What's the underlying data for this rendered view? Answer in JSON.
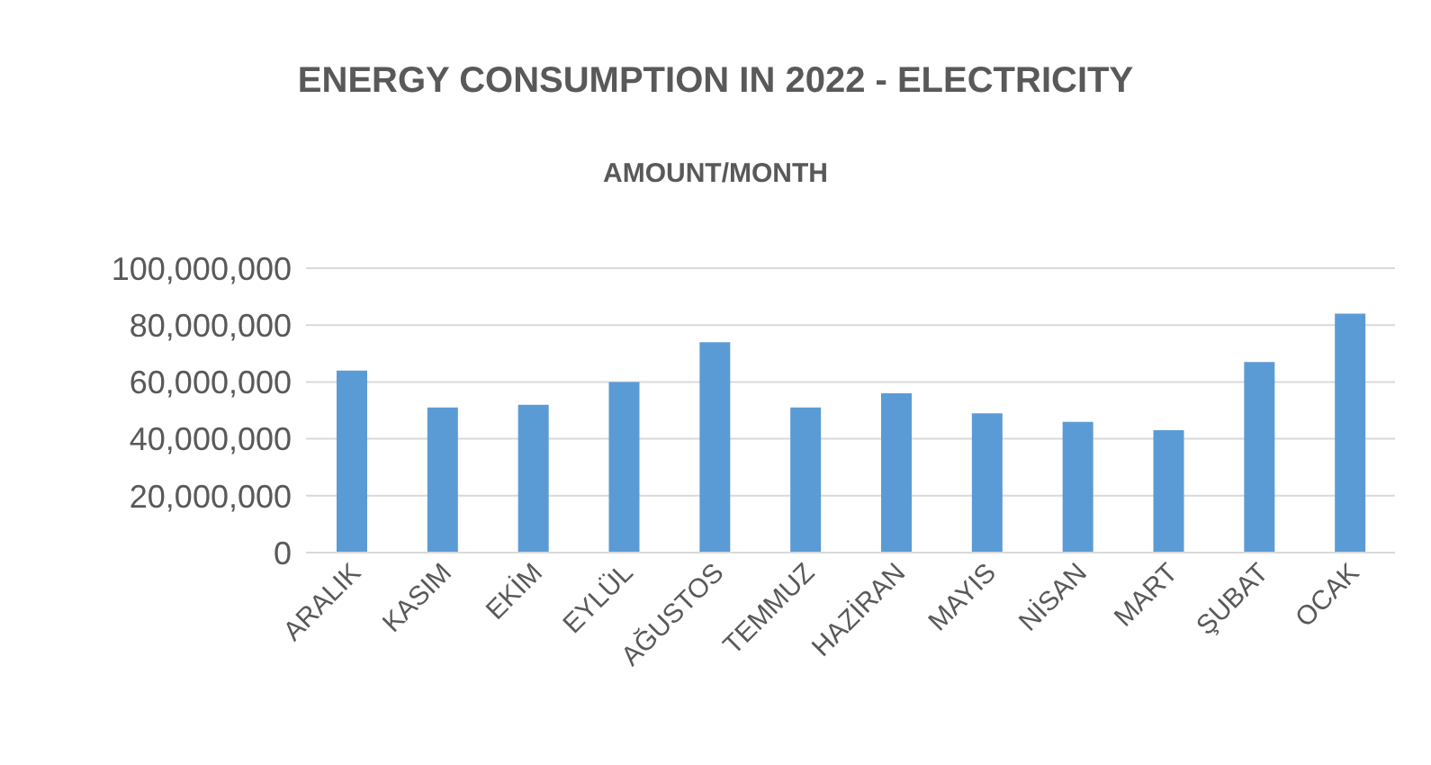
{
  "chart_data": {
    "type": "bar",
    "title": "ENERGY CONSUMPTION IN 2022 - ELECTRICITY",
    "subtitle": "AMOUNT/MONTH",
    "categories": [
      "ARALIK",
      "KASIM",
      "EKİM",
      "EYLÜL",
      "AĞUSTOS",
      "TEMMUZ",
      "HAZİRAN",
      "MAYIS",
      "NİSAN",
      "MART",
      "ŞUBAT",
      "OCAK"
    ],
    "values": [
      64000000,
      51000000,
      52000000,
      60000000,
      74000000,
      51000000,
      56000000,
      49000000,
      46000000,
      43000000,
      67000000,
      84000000
    ],
    "color": "#5b9bd5",
    "ylim": [
      0,
      100000000
    ],
    "yticks": [
      0,
      {
        "value": 20000000,
        "label": "20,000,000"
      },
      {
        "value": 40000000,
        "label": "40,000,000"
      },
      {
        "value": 60000000,
        "label": "60,000,000"
      },
      {
        "value": 80000000,
        "label": "80,000,000"
      },
      {
        "value": 100000000,
        "label": "100,000,000"
      }
    ],
    "grid": "y"
  }
}
